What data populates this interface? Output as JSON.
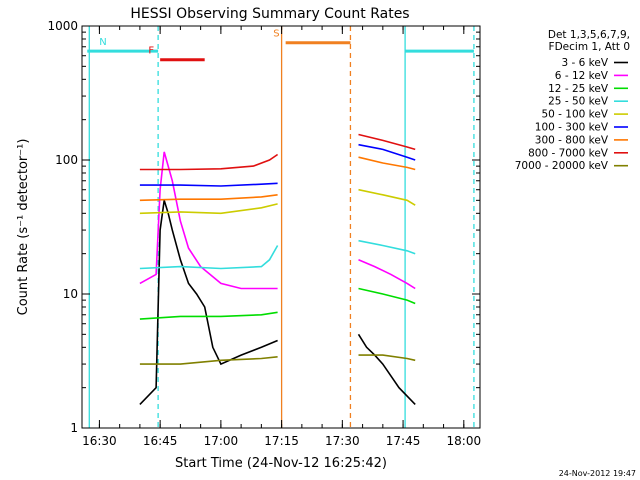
{
  "chart_data": {
    "type": "line",
    "title": "HESSI Observing Summary Count Rates",
    "xlabel": "Start Time (24-Nov-12 16:25:42)",
    "ylabel": "Count Rate (s⁻¹ detector⁻¹)",
    "y_scale": "log",
    "ylim": [
      1,
      1000
    ],
    "xlim": [
      "16:25:42",
      "18:04:00"
    ],
    "x_tick_labels": [
      "16:30",
      "16:45",
      "17:00",
      "17:15",
      "17:30",
      "17:45",
      "18:00"
    ],
    "y_tick_labels": [
      "1",
      "10",
      "100",
      "1000"
    ],
    "legend_placement": "right",
    "legend_header": [
      "Det 1,3,5,6,7,9,",
      "FDecim 1, Att 0"
    ],
    "footer_timestamp": "24-Nov-2012 19:47",
    "flags": [
      {
        "label": "N",
        "color": "#33dddd",
        "start": "16:27:00",
        "end": "16:44:30",
        "level": 650
      },
      {
        "label": "F",
        "color": "#e01010",
        "start": "16:45:00",
        "end": "16:56:00",
        "level": 560
      },
      {
        "label": "S",
        "color": "#f08020",
        "start": "17:16:00",
        "end": "17:32:00",
        "level": 750
      },
      {
        "label": "",
        "color": "#33dddd",
        "start": "17:45:30",
        "end": "18:02:30",
        "level": 650
      }
    ],
    "vertical_lines": [
      {
        "time": "16:27:30",
        "color": "#33dddd",
        "style": "solid"
      },
      {
        "time": "16:44:30",
        "color": "#33dddd",
        "style": "dashed"
      },
      {
        "time": "17:15:00",
        "color": "#f08020",
        "style": "solid"
      },
      {
        "time": "17:32:00",
        "color": "#f08020",
        "style": "dashed"
      },
      {
        "time": "17:45:30",
        "color": "#33dddd",
        "style": "solid"
      },
      {
        "time": "18:02:30",
        "color": "#33dddd",
        "style": "dashed"
      }
    ],
    "series": [
      {
        "name": "3 - 6 keV",
        "color": "#000000",
        "x": [
          "16:40",
          "16:44",
          "16:45",
          "16:46",
          "16:47",
          "16:48",
          "16:50",
          "16:52",
          "16:54",
          "16:56",
          "16:58",
          "17:00",
          "17:05",
          "17:10",
          "17:14",
          "",
          "17:34",
          "17:36",
          "17:38",
          "17:40",
          "17:44",
          "17:48"
        ],
        "y": [
          1.5,
          2.0,
          30,
          50,
          40,
          30,
          18,
          12,
          10,
          8,
          4,
          3,
          3.5,
          4,
          4.5,
          null,
          5,
          4,
          3.5,
          3,
          2,
          1.5
        ]
      },
      {
        "name": "6 - 12 keV",
        "color": "#ff00ff",
        "x": [
          "16:40",
          "16:44",
          "16:45",
          "16:46",
          "16:48",
          "16:50",
          "16:52",
          "16:55",
          "17:00",
          "17:05",
          "17:10",
          "17:14",
          "",
          "17:34",
          "17:38",
          "17:42",
          "17:46",
          "17:48"
        ],
        "y": [
          12,
          14,
          60,
          115,
          70,
          35,
          22,
          16,
          12,
          11,
          11,
          11,
          null,
          18,
          16,
          14,
          12,
          11
        ]
      },
      {
        "name": "12 - 25 keV",
        "color": "#00dd00",
        "x": [
          "16:40",
          "16:50",
          "17:00",
          "17:10",
          "17:14",
          "",
          "17:34",
          "17:40",
          "17:46",
          "17:48"
        ],
        "y": [
          6.5,
          6.8,
          6.8,
          7.0,
          7.3,
          null,
          11,
          10,
          9,
          8.5
        ]
      },
      {
        "name": "25 - 50 keV",
        "color": "#33dddd",
        "x": [
          "16:40",
          "16:50",
          "17:00",
          "17:10",
          "17:12",
          "17:14",
          "",
          "17:34",
          "17:40",
          "17:46",
          "17:48"
        ],
        "y": [
          15.5,
          16,
          15.5,
          16,
          18,
          23,
          null,
          25,
          23,
          21,
          20
        ]
      },
      {
        "name": "50 - 100 keV",
        "color": "#cccc00",
        "x": [
          "16:40",
          "16:50",
          "17:00",
          "17:10",
          "17:14",
          "",
          "17:34",
          "17:40",
          "17:46",
          "17:48"
        ],
        "y": [
          40,
          41,
          40,
          44,
          47,
          null,
          60,
          55,
          50,
          46
        ]
      },
      {
        "name": "100 - 300 keV",
        "color": "#0000ff",
        "x": [
          "16:40",
          "16:50",
          "17:00",
          "17:10",
          "17:14",
          "",
          "17:34",
          "17:40",
          "17:46",
          "17:48"
        ],
        "y": [
          65,
          65,
          64,
          66,
          67,
          null,
          130,
          120,
          105,
          100
        ]
      },
      {
        "name": "300 - 800 keV",
        "color": "#ff7700",
        "x": [
          "16:40",
          "16:50",
          "17:00",
          "17:10",
          "17:14",
          "",
          "17:34",
          "17:40",
          "17:46",
          "17:48"
        ],
        "y": [
          50,
          51,
          51,
          53,
          55,
          null,
          105,
          95,
          88,
          85
        ]
      },
      {
        "name": "800 - 7000 keV",
        "color": "#e01010",
        "x": [
          "16:40",
          "16:50",
          "17:00",
          "17:08",
          "17:12",
          "17:14",
          "",
          "17:34",
          "17:40",
          "17:46",
          "17:48"
        ],
        "y": [
          85,
          85,
          86,
          90,
          100,
          110,
          null,
          155,
          140,
          125,
          120
        ]
      },
      {
        "name": "7000 - 20000 keV",
        "color": "#808000",
        "x": [
          "16:40",
          "16:50",
          "17:00",
          "17:10",
          "17:14",
          "",
          "17:34",
          "17:40",
          "17:46",
          "17:48"
        ],
        "y": [
          3,
          3,
          3.2,
          3.3,
          3.4,
          null,
          3.5,
          3.5,
          3.3,
          3.2
        ]
      }
    ]
  }
}
